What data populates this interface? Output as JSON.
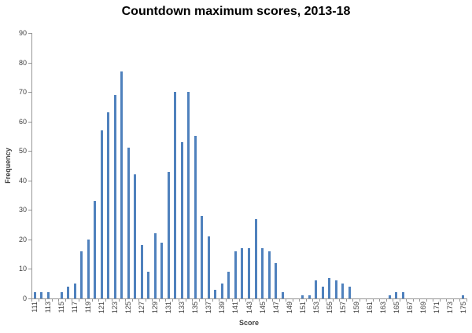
{
  "chart_data": {
    "type": "bar",
    "title": "Countdown maximum scores, 2013-18",
    "xlabel": "Score",
    "ylabel": "Frequency",
    "ylim": [
      0,
      90
    ],
    "ytick_step": 10,
    "x_label_every": 2,
    "grid": false,
    "legend": false,
    "bar_color": "#4F81BD",
    "axis_color": "#969696",
    "tick_label_color": "#404040",
    "title_color": "#000000",
    "categories": [
      111,
      112,
      113,
      114,
      115,
      116,
      117,
      118,
      119,
      120,
      121,
      122,
      123,
      124,
      125,
      126,
      127,
      128,
      129,
      130,
      131,
      132,
      133,
      134,
      135,
      136,
      137,
      138,
      139,
      140,
      141,
      142,
      143,
      144,
      145,
      146,
      147,
      148,
      149,
      150,
      151,
      152,
      153,
      154,
      155,
      156,
      157,
      158,
      159,
      160,
      161,
      162,
      163,
      164,
      165,
      166,
      167,
      168,
      169,
      170,
      171,
      172,
      173,
      174,
      175
    ],
    "values": [
      2,
      2,
      2,
      0,
      2,
      4,
      5,
      16,
      20,
      33,
      57,
      63,
      69,
      77,
      51,
      42,
      18,
      9,
      22,
      19,
      43,
      70,
      53,
      70,
      55,
      28,
      21,
      3,
      5,
      9,
      16,
      17,
      17,
      27,
      17,
      16,
      12,
      2,
      0,
      0,
      1,
      1,
      6,
      4,
      7,
      6,
      5,
      4,
      0,
      0,
      0,
      0,
      0,
      1,
      2,
      2,
      0,
      0,
      0,
      0,
      0,
      0,
      0,
      0,
      1
    ]
  }
}
